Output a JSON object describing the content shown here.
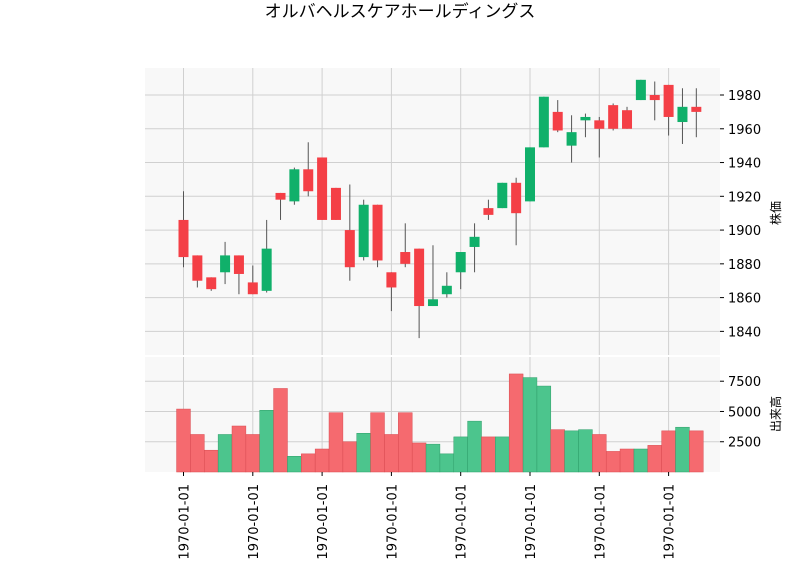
{
  "chart_data": {
    "type": "candlestick",
    "title": "オルバヘルスケアホールディングス",
    "price_ylabel": "株価",
    "volume_ylabel": "出来高",
    "x_tick_labels": [
      "1970-01-01",
      "1970-01-01",
      "1970-01-01",
      "1970-01-01",
      "1970-01-01",
      "1970-01-01",
      "1970-01-01",
      "1970-01-01"
    ],
    "x_tick_indices": [
      0,
      5,
      10,
      15,
      20,
      25,
      30,
      35
    ],
    "price_yticks": [
      1840,
      1860,
      1880,
      1900,
      1920,
      1940,
      1960,
      1980
    ],
    "price_ylim": [
      1826,
      1996
    ],
    "volume_yticks": [
      2500,
      5000,
      7500
    ],
    "volume_yticklabels": [
      "2500",
      "5000",
      "7500"
    ],
    "volume_ylim": [
      0,
      9500
    ],
    "grid": true,
    "colors": {
      "up": "#10b06a",
      "down": "#f43f46",
      "up_volume": "#4cc58d",
      "down_volume": "#f56a6f",
      "wick": "#555555",
      "plot_bg": "#f8f8f8",
      "grid": "#d0d0d0"
    },
    "candles": [
      {
        "open": 1906,
        "high": 1923,
        "low": 1878,
        "close": 1884,
        "volume": 5200
      },
      {
        "open": 1885,
        "high": 1885,
        "low": 1866,
        "close": 1870,
        "volume": 3100
      },
      {
        "open": 1872,
        "high": 1872,
        "low": 1864,
        "close": 1865,
        "volume": 1800
      },
      {
        "open": 1875,
        "high": 1893,
        "low": 1868,
        "close": 1885,
        "volume": 3100
      },
      {
        "open": 1885,
        "high": 1885,
        "low": 1862,
        "close": 1874,
        "volume": 3800
      },
      {
        "open": 1869,
        "high": 1879,
        "low": 1862,
        "close": 1862,
        "volume": 3100
      },
      {
        "open": 1864,
        "high": 1906,
        "low": 1863,
        "close": 1889,
        "volume": 5100
      },
      {
        "open": 1922,
        "high": 1922,
        "low": 1906,
        "close": 1918,
        "volume": 6900
      },
      {
        "open": 1917,
        "high": 1937,
        "low": 1915,
        "close": 1936,
        "volume": 1300
      },
      {
        "open": 1936,
        "high": 1952,
        "low": 1920,
        "close": 1923,
        "volume": 1500
      },
      {
        "open": 1943,
        "high": 1943,
        "low": 1906,
        "close": 1906,
        "volume": 1900
      },
      {
        "open": 1925,
        "high": 1925,
        "low": 1906,
        "close": 1906,
        "volume": 4900
      },
      {
        "open": 1900,
        "high": 1927,
        "low": 1870,
        "close": 1878,
        "volume": 2500
      },
      {
        "open": 1884,
        "high": 1918,
        "low": 1882,
        "close": 1915,
        "volume": 3200
      },
      {
        "open": 1915,
        "high": 1915,
        "low": 1878,
        "close": 1882,
        "volume": 4900
      },
      {
        "open": 1875,
        "high": 1875,
        "low": 1852,
        "close": 1866,
        "volume": 3100
      },
      {
        "open": 1887,
        "high": 1904,
        "low": 1878,
        "close": 1880,
        "volume": 4900
      },
      {
        "open": 1889,
        "high": 1889,
        "low": 1836,
        "close": 1855,
        "volume": 2400
      },
      {
        "open": 1855,
        "high": 1891,
        "low": 1855,
        "close": 1859,
        "volume": 2300
      },
      {
        "open": 1862,
        "high": 1875,
        "low": 1860,
        "close": 1867,
        "volume": 1500
      },
      {
        "open": 1875,
        "high": 1887,
        "low": 1865,
        "close": 1887,
        "volume": 2900
      },
      {
        "open": 1890,
        "high": 1904,
        "low": 1875,
        "close": 1896,
        "volume": 4200
      },
      {
        "open": 1913,
        "high": 1918,
        "low": 1906,
        "close": 1909,
        "volume": 2900
      },
      {
        "open": 1913,
        "high": 1928,
        "low": 1913,
        "close": 1928,
        "volume": 2900
      },
      {
        "open": 1928,
        "high": 1931,
        "low": 1891,
        "close": 1910,
        "volume": 8100
      },
      {
        "open": 1917,
        "high": 1949,
        "low": 1917,
        "close": 1949,
        "volume": 7800
      },
      {
        "open": 1949,
        "high": 1979,
        "low": 1949,
        "close": 1979,
        "volume": 7100
      },
      {
        "open": 1970,
        "high": 1977,
        "low": 1958,
        "close": 1959,
        "volume": 3500
      },
      {
        "open": 1950,
        "high": 1968,
        "low": 1940,
        "close": 1958,
        "volume": 3400
      },
      {
        "open": 1965,
        "high": 1969,
        "low": 1955,
        "close": 1967,
        "volume": 3500
      },
      {
        "open": 1965,
        "high": 1967,
        "low": 1943,
        "close": 1960,
        "volume": 3100
      },
      {
        "open": 1974,
        "high": 1975,
        "low": 1959,
        "close": 1960,
        "volume": 1700
      },
      {
        "open": 1971,
        "high": 1973,
        "low": 1960,
        "close": 1960,
        "volume": 1900
      },
      {
        "open": 1977,
        "high": 1989,
        "low": 1977,
        "close": 1989,
        "volume": 1900
      },
      {
        "open": 1980,
        "high": 1988,
        "low": 1965,
        "close": 1977,
        "volume": 2200
      },
      {
        "open": 1986,
        "high": 1986,
        "low": 1956,
        "close": 1967,
        "volume": 3400
      },
      {
        "open": 1964,
        "high": 1984,
        "low": 1951,
        "close": 1973,
        "volume": 3700
      },
      {
        "open": 1973,
        "high": 1984,
        "low": 1955,
        "close": 1970,
        "volume": 3400
      }
    ]
  }
}
